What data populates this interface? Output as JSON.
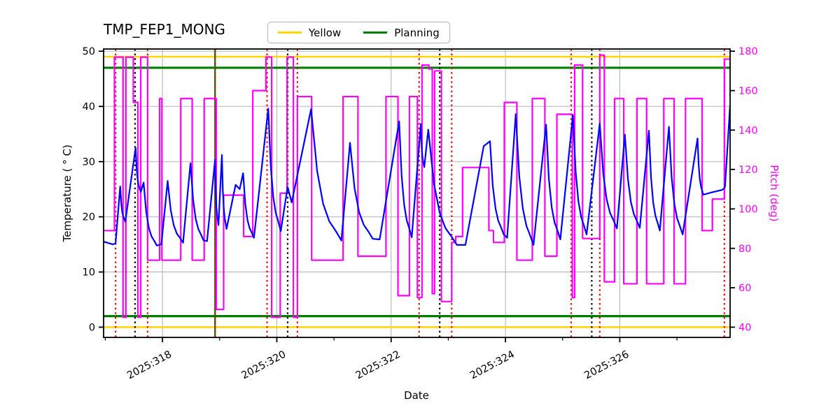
{
  "title": "TMP_FEP1_MONG",
  "background": "#ffffff",
  "legend": {
    "position": "top-center",
    "items": [
      {
        "label": "Yellow",
        "color": "#ffd700"
      },
      {
        "label": "Planning",
        "color": "#008000"
      }
    ]
  },
  "axes": {
    "x_label": "Date",
    "y_left_label": "Temperature ( ° C)",
    "y_right_label": "Pitch (deg)",
    "y_right_color": "#ff00ff",
    "x_tick_labels": [
      "2025:318",
      "2025:320",
      "2025:322",
      "2025:324",
      "2025:326"
    ],
    "x_tick_days": [
      318,
      320,
      322,
      324,
      326
    ],
    "x_minor_tick_days": [
      317,
      319,
      321,
      323,
      325,
      327
    ],
    "y_left_ticks": [
      0,
      10,
      20,
      30,
      40,
      50
    ],
    "y_right_ticks": [
      40,
      60,
      80,
      100,
      120,
      140,
      160,
      180
    ],
    "x_range_days": [
      316.97,
      327.93
    ],
    "y_left_range": [
      -1.85,
      50.4
    ],
    "y_right_range": [
      34.8,
      181.1
    ],
    "grid": true,
    "grid_color": "#b0b0b0"
  },
  "chart_data": {
    "type": "line",
    "title": "TMP_FEP1_MONG",
    "xlabel": "Date",
    "ylabel_left": "Temperature ( ° C)",
    "ylabel_right": "Pitch (deg)",
    "x_unit": "day-of-year 2025",
    "series": [
      {
        "name": "Temperature",
        "axis": "left",
        "style": "line",
        "color": "#0000ff",
        "width": 2.2,
        "points": [
          [
            316.97,
            15.5
          ],
          [
            317.13,
            15.0
          ],
          [
            317.18,
            15.2
          ],
          [
            317.26,
            25.5
          ],
          [
            317.35,
            19.1
          ],
          [
            317.53,
            32.5
          ],
          [
            317.62,
            24.5
          ],
          [
            317.67,
            26.2
          ],
          [
            317.9,
            14.8
          ],
          [
            317.98,
            15.0
          ],
          [
            318.09,
            26.5
          ],
          [
            318.36,
            15.3
          ],
          [
            318.49,
            29.7
          ],
          [
            318.72,
            15.7
          ],
          [
            318.78,
            15.6
          ],
          [
            318.92,
            30.3
          ],
          [
            318.98,
            18.5
          ],
          [
            319.04,
            31.2
          ],
          [
            319.12,
            17.8
          ],
          [
            319.28,
            25.8
          ],
          [
            319.35,
            25.0
          ],
          [
            319.41,
            27.9
          ],
          [
            319.6,
            16.2
          ],
          [
            319.85,
            39.6
          ],
          [
            320.07,
            17.4
          ],
          [
            320.19,
            25.4
          ],
          [
            320.26,
            22.6
          ],
          [
            320.6,
            39.5
          ],
          [
            321.13,
            15.7
          ],
          [
            321.28,
            33.4
          ],
          [
            321.68,
            16.0
          ],
          [
            321.8,
            15.9
          ],
          [
            322.14,
            37.3
          ],
          [
            322.36,
            16.3
          ],
          [
            322.52,
            36.8
          ],
          [
            322.58,
            29.0
          ],
          [
            322.65,
            35.8
          ],
          [
            323.15,
            14.9
          ],
          [
            323.3,
            14.9
          ],
          [
            323.62,
            32.8
          ],
          [
            323.73,
            33.7
          ],
          [
            323.97,
            16.8
          ],
          [
            324.03,
            16.2
          ],
          [
            324.18,
            38.6
          ],
          [
            324.49,
            14.9
          ],
          [
            324.71,
            36.7
          ],
          [
            324.96,
            15.9
          ],
          [
            325.18,
            38.4
          ],
          [
            325.42,
            16.8
          ],
          [
            325.65,
            36.9
          ],
          [
            325.95,
            17.9
          ],
          [
            326.09,
            34.9
          ],
          [
            326.35,
            18.0
          ],
          [
            326.51,
            35.6
          ],
          [
            326.7,
            17.5
          ],
          [
            326.86,
            36.3
          ],
          [
            327.1,
            16.8
          ],
          [
            327.36,
            34.2
          ],
          [
            327.46,
            24.0
          ],
          [
            327.6,
            24.4
          ],
          [
            327.8,
            24.9
          ],
          [
            327.84,
            25.4
          ],
          [
            327.93,
            40.2
          ]
        ]
      },
      {
        "name": "Pitch",
        "axis": "right",
        "style": "step",
        "color": "#ff00ff",
        "width": 2.2,
        "points": [
          [
            316.97,
            89
          ],
          [
            317.16,
            177
          ],
          [
            317.31,
            45
          ],
          [
            317.36,
            177
          ],
          [
            317.49,
            154
          ],
          [
            317.57,
            45
          ],
          [
            317.62,
            177
          ],
          [
            317.74,
            74
          ],
          [
            317.95,
            156
          ],
          [
            317.99,
            74
          ],
          [
            318.32,
            156
          ],
          [
            318.52,
            74
          ],
          [
            318.73,
            156
          ],
          [
            318.94,
            49
          ],
          [
            319.07,
            107
          ],
          [
            319.42,
            86
          ],
          [
            319.58,
            160
          ],
          [
            319.81,
            177
          ],
          [
            319.91,
            45
          ],
          [
            320.06,
            108
          ],
          [
            320.18,
            177
          ],
          [
            320.29,
            45
          ],
          [
            320.36,
            157
          ],
          [
            320.61,
            74
          ],
          [
            321.16,
            157
          ],
          [
            321.42,
            76
          ],
          [
            321.91,
            157
          ],
          [
            322.12,
            56
          ],
          [
            322.32,
            157
          ],
          [
            322.46,
            55
          ],
          [
            322.54,
            173
          ],
          [
            322.66,
            171
          ],
          [
            322.72,
            57
          ],
          [
            322.76,
            170
          ],
          [
            322.88,
            53
          ],
          [
            323.06,
            83
          ],
          [
            323.13,
            86
          ],
          [
            323.25,
            121
          ],
          [
            323.71,
            89
          ],
          [
            323.79,
            83
          ],
          [
            323.98,
            154
          ],
          [
            324.2,
            74
          ],
          [
            324.47,
            156
          ],
          [
            324.69,
            76
          ],
          [
            324.9,
            148
          ],
          [
            325.17,
            55
          ],
          [
            325.21,
            173
          ],
          [
            325.35,
            85
          ],
          [
            325.65,
            178
          ],
          [
            325.73,
            63
          ],
          [
            325.91,
            156
          ],
          [
            326.07,
            62
          ],
          [
            326.3,
            156
          ],
          [
            326.47,
            62
          ],
          [
            326.77,
            156
          ],
          [
            326.95,
            62
          ],
          [
            327.15,
            156
          ],
          [
            327.44,
            89
          ],
          [
            327.62,
            105
          ],
          [
            327.83,
            176
          ],
          [
            327.93,
            176
          ]
        ]
      }
    ],
    "limit_lines": [
      {
        "name": "Yellow",
        "color": "#ffd700",
        "axis": "left",
        "values": [
          49.0,
          0.0
        ],
        "width": 2.5
      },
      {
        "name": "Planning",
        "color": "#008000",
        "axis": "left",
        "values": [
          47.0,
          2.0
        ],
        "width": 3.2
      }
    ],
    "vlines": {
      "red_dotted_days": [
        317.18,
        317.74,
        318.92,
        319.83,
        320.36,
        322.49,
        323.06,
        325.15,
        325.65,
        327.83
      ],
      "black_dotted_days": [
        317.52,
        320.19,
        322.85,
        325.51
      ],
      "green_solid_days": [
        318.92
      ]
    }
  }
}
